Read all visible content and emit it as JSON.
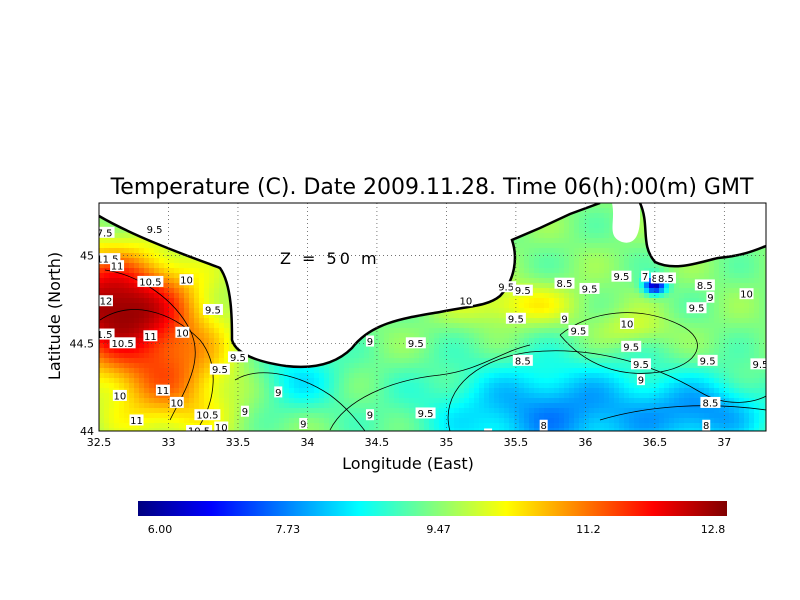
{
  "chart_data": {
    "type": "heatmap",
    "title": "Temperature (C). Date 2009.11.28. Time 06(h):00(m) GMT",
    "xlabel": "Longitude (East)",
    "ylabel": "Latitude (North)",
    "annotation": "Z = 50 m",
    "xlim": [
      32.5,
      37.3
    ],
    "ylim": [
      44.0,
      45.3
    ],
    "x_ticks": [
      "32.5",
      "33",
      "33.5",
      "34",
      "34.5",
      "35",
      "35.5",
      "36",
      "36.5",
      "37"
    ],
    "x_tick_values": [
      32.5,
      33,
      33.5,
      34,
      34.5,
      35,
      35.5,
      36,
      36.5,
      37
    ],
    "y_ticks": [
      "44",
      "44.5",
      "45"
    ],
    "y_tick_values": [
      44,
      44.5,
      45
    ],
    "grid": true,
    "colorscale": {
      "min": 6.0,
      "max": 12.8,
      "tick_labels": [
        "6.00",
        "7.73",
        "9.47",
        "11.2",
        "12.8"
      ],
      "tick_values": [
        6.0,
        7.73,
        9.47,
        11.2,
        12.8
      ],
      "colors": [
        "#000080",
        "#0000ff",
        "#0080ff",
        "#00ffff",
        "#80ff80",
        "#ffff00",
        "#ff8000",
        "#ff0000",
        "#800000"
      ]
    },
    "contour_labels": [
      {
        "text": "9.5",
        "lon": 32.9,
        "lat": 45.15
      },
      {
        "text": "7.5",
        "lon": 32.54,
        "lat": 45.13
      },
      {
        "text": "11.5",
        "lon": 32.56,
        "lat": 44.98
      },
      {
        "text": "11",
        "lon": 32.63,
        "lat": 44.94
      },
      {
        "text": "10.5",
        "lon": 32.87,
        "lat": 44.85
      },
      {
        "text": "10",
        "lon": 33.13,
        "lat": 44.86
      },
      {
        "text": "12",
        "lon": 32.55,
        "lat": 44.74
      },
      {
        "text": "9.5",
        "lon": 33.32,
        "lat": 44.69
      },
      {
        "text": "1.5",
        "lon": 32.54,
        "lat": 44.55
      },
      {
        "text": "10.5",
        "lon": 32.67,
        "lat": 44.5
      },
      {
        "text": "11",
        "lon": 32.87,
        "lat": 44.54
      },
      {
        "text": "10",
        "lon": 33.1,
        "lat": 44.56
      },
      {
        "text": "9.5",
        "lon": 33.5,
        "lat": 44.42
      },
      {
        "text": "9.5",
        "lon": 33.37,
        "lat": 44.35
      },
      {
        "text": "11",
        "lon": 32.96,
        "lat": 44.23
      },
      {
        "text": "10",
        "lon": 32.65,
        "lat": 44.2
      },
      {
        "text": "10",
        "lon": 33.06,
        "lat": 44.16
      },
      {
        "text": "10.5",
        "lon": 33.28,
        "lat": 44.09
      },
      {
        "text": "11",
        "lon": 32.77,
        "lat": 44.06
      },
      {
        "text": "10.5",
        "lon": 33.22,
        "lat": 44.0
      },
      {
        "text": "10",
        "lon": 33.38,
        "lat": 44.02
      },
      {
        "text": "9",
        "lon": 33.55,
        "lat": 44.11
      },
      {
        "text": "9",
        "lon": 33.79,
        "lat": 44.22
      },
      {
        "text": "9",
        "lon": 33.97,
        "lat": 44.04
      },
      {
        "text": "9",
        "lon": 34.45,
        "lat": 44.51
      },
      {
        "text": "9.5",
        "lon": 34.78,
        "lat": 44.5
      },
      {
        "text": "9",
        "lon": 34.45,
        "lat": 44.09
      },
      {
        "text": "9.5",
        "lon": 34.85,
        "lat": 44.1
      },
      {
        "text": "8",
        "lon": 35.3,
        "lat": 43.98
      },
      {
        "text": "8",
        "lon": 35.7,
        "lat": 44.03
      },
      {
        "text": "10",
        "lon": 35.14,
        "lat": 44.74
      },
      {
        "text": "9.5",
        "lon": 35.43,
        "lat": 44.82
      },
      {
        "text": "9.5",
        "lon": 35.55,
        "lat": 44.8
      },
      {
        "text": "9.5",
        "lon": 35.5,
        "lat": 44.64
      },
      {
        "text": "9",
        "lon": 35.85,
        "lat": 44.64
      },
      {
        "text": "8.5",
        "lon": 35.85,
        "lat": 44.84
      },
      {
        "text": "9.5",
        "lon": 36.03,
        "lat": 44.81
      },
      {
        "text": "9.5",
        "lon": 36.26,
        "lat": 44.88
      },
      {
        "text": "7",
        "lon": 36.43,
        "lat": 44.88
      },
      {
        "text": "8",
        "lon": 36.5,
        "lat": 44.87
      },
      {
        "text": "8.5",
        "lon": 36.58,
        "lat": 44.87
      },
      {
        "text": "8.5",
        "lon": 36.86,
        "lat": 44.83
      },
      {
        "text": "9.5",
        "lon": 36.8,
        "lat": 44.7
      },
      {
        "text": "9",
        "lon": 36.9,
        "lat": 44.76
      },
      {
        "text": "10",
        "lon": 37.16,
        "lat": 44.78
      },
      {
        "text": "10",
        "lon": 36.3,
        "lat": 44.61
      },
      {
        "text": "9.5",
        "lon": 35.95,
        "lat": 44.57
      },
      {
        "text": "9.5",
        "lon": 36.33,
        "lat": 44.48
      },
      {
        "text": "9.5",
        "lon": 36.4,
        "lat": 44.38
      },
      {
        "text": "9",
        "lon": 36.4,
        "lat": 44.29
      },
      {
        "text": "9.5",
        "lon": 36.88,
        "lat": 44.4
      },
      {
        "text": "8.5",
        "lon": 35.55,
        "lat": 44.4
      },
      {
        "text": "8.5",
        "lon": 36.9,
        "lat": 44.16
      },
      {
        "text": "8",
        "lon": 36.87,
        "lat": 44.03
      },
      {
        "text": "9.5",
        "lon": 37.26,
        "lat": 44.38
      }
    ]
  }
}
